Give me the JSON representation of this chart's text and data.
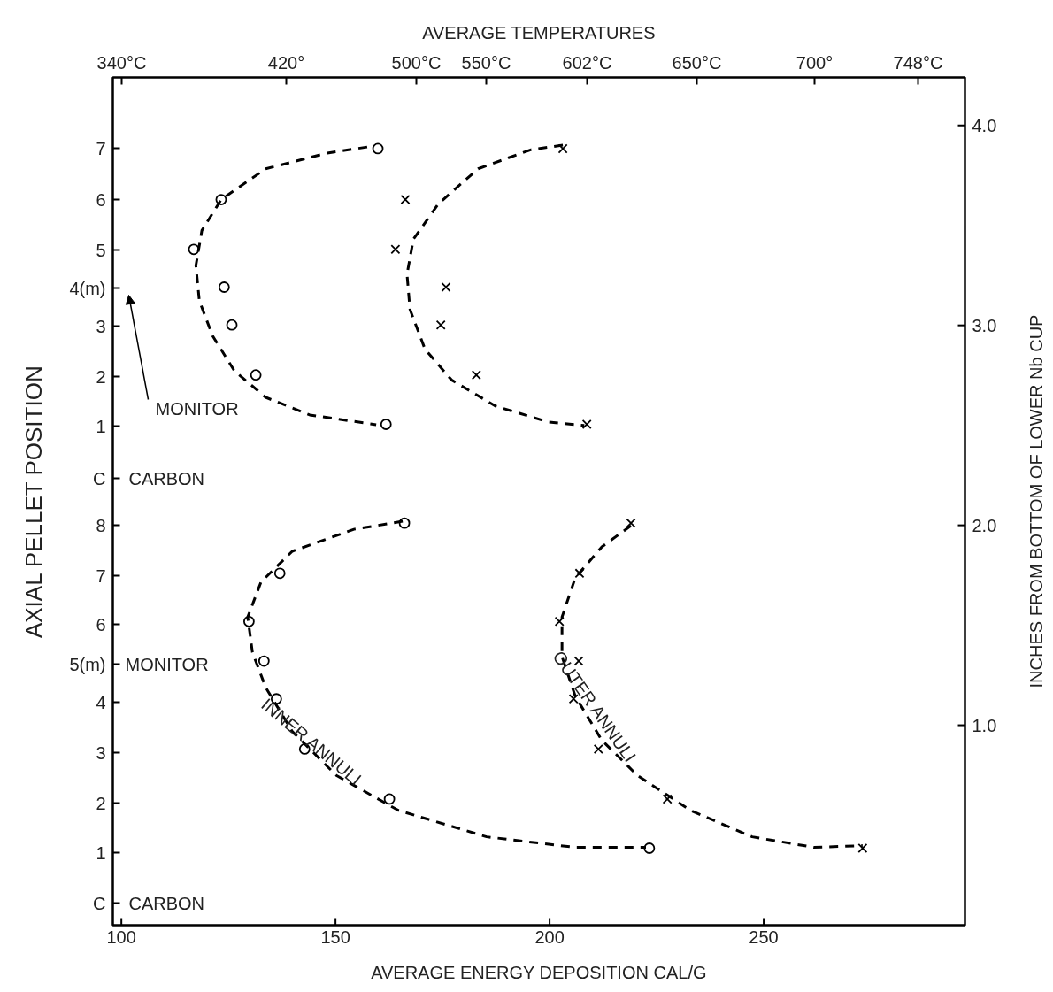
{
  "chart_data": {
    "type": "scatter",
    "xlabel": "AVERAGE ENERGY DEPOSITION CAL/G",
    "ylabel": "INCHES FROM BOTTOM OF LOWER Nb CUP",
    "y2label": "AXIAL PELLET POSITION",
    "x2label": "AVERAGE TEMPERATURES",
    "xlim": [
      98,
      297
    ],
    "xticks": [
      100,
      150,
      200,
      250
    ],
    "ylim": [
      0,
      4.24
    ],
    "yticks": [
      {
        "value": 1,
        "label": "1.0"
      },
      {
        "value": 2,
        "label": "2.0"
      },
      {
        "value": 3,
        "label": "3.0"
      },
      {
        "value": 4,
        "label": "4.0"
      }
    ],
    "grid": false,
    "series": [
      {
        "marker": "circle",
        "color": "#000000",
        "x": [
          159.9,
          123.3,
          116.9,
          124.0,
          125.8,
          131.4,
          161.8
        ],
        "values": [
          3.884,
          3.629,
          3.38,
          3.191,
          3.002,
          2.752,
          2.505
        ]
      },
      {
        "marker": "cross",
        "color": "#000000",
        "x": [
          203.1,
          166.3,
          164.0,
          175.8,
          174.6,
          182.9,
          208.7
        ],
        "values": [
          3.884,
          3.629,
          3.38,
          3.191,
          3.002,
          2.752,
          2.505
        ]
      },
      {
        "marker": "circle",
        "color": "#000000",
        "x": [
          166.1,
          137.0,
          129.8,
          133.3,
          136.2,
          142.8,
          162.6,
          223.3
        ],
        "values": [
          2.011,
          1.76,
          1.519,
          1.321,
          1.132,
          0.881,
          0.631,
          0.385
        ]
      },
      {
        "marker": "cross",
        "color": "#000000",
        "x": [
          219.0,
          207.0,
          202.3,
          206.8,
          205.6,
          211.4,
          227.5,
          273.1
        ],
        "values": [
          2.011,
          1.76,
          1.519,
          1.321,
          1.132,
          0.881,
          0.631,
          0.385
        ]
      },
      {
        "type": "line",
        "line_style": "dashed",
        "color": "#000000",
        "x": [
          157.4,
          148.1,
          133.7,
          123.3,
          118.8,
          117.4,
          118.2,
          121.3,
          126.4,
          133.7,
          144.0,
          159.5
        ],
        "values": [
          3.892,
          3.862,
          3.783,
          3.629,
          3.475,
          3.299,
          3.123,
          2.948,
          2.772,
          2.64,
          2.552,
          2.503
        ]
      },
      {
        "type": "line",
        "line_style": "dashed",
        "color": "#000000",
        "x": [
          203.1,
          195.7,
          183.3,
          174.0,
          168.2,
          166.7,
          167.4,
          170.9,
          177.1,
          187.4,
          199.8,
          208.1
        ],
        "values": [
          3.901,
          3.879,
          3.783,
          3.607,
          3.431,
          3.255,
          3.079,
          2.881,
          2.727,
          2.596,
          2.516,
          2.499
        ]
      },
      {
        "type": "line",
        "line_style": "dashed",
        "color": "#000000",
        "x": [
          165.7,
          154.3,
          139.9,
          132.6,
          129.5,
          130.6,
          133.7,
          139.9,
          150.2,
          164.7,
          185.3,
          206.0,
          222.5
        ],
        "values": [
          2.02,
          1.98,
          1.87,
          1.716,
          1.541,
          1.365,
          1.189,
          0.969,
          0.749,
          0.574,
          0.442,
          0.389,
          0.389
        ]
      },
      {
        "type": "line",
        "line_style": "dashed",
        "color": "#000000",
        "x": [
          219.0,
          212.2,
          206.0,
          202.9,
          202.9,
          206.0,
          212.2,
          220.5,
          232.9,
          247.3,
          261.8,
          273.1
        ],
        "values": [
          1.998,
          1.892,
          1.738,
          1.541,
          1.343,
          1.145,
          0.925,
          0.749,
          0.574,
          0.442,
          0.389,
          0.398
        ]
      }
    ],
    "annotations": [
      "340°C",
      "420°",
      "500°C",
      "550°C",
      "602°C",
      "650°C",
      "700°",
      "748°C",
      "7",
      "6",
      "5",
      "4(m)",
      "3",
      "2",
      "1",
      "C",
      "8",
      "7",
      "6",
      "5(m)",
      "4",
      "3",
      "2",
      "1",
      "C",
      "MONITOR",
      "CARBON",
      "MONITOR",
      "CARBON",
      {
        "text": "INNER ANNULI",
        "x": 139.9,
        "y": 0.969
      },
      {
        "text": "OUTER ANNULI",
        "x": 206.0,
        "y": 1.145
      }
    ]
  }
}
